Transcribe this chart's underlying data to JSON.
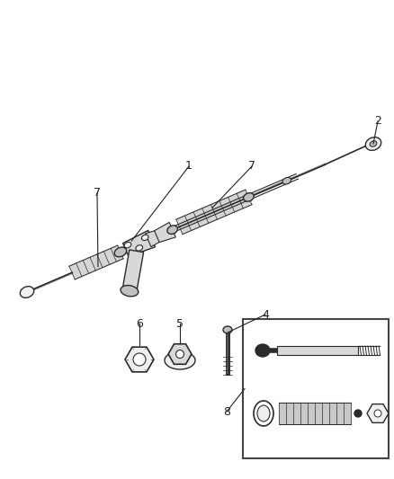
{
  "background_color": "#ffffff",
  "line_dark": "#2a2a2a",
  "line_mid": "#555555",
  "line_light": "#999999",
  "fill_gray": "#d8d8d8",
  "fill_light": "#efefef",
  "fill_mid": "#c0c0c0",
  "fig_width": 4.38,
  "fig_height": 5.33,
  "dpi": 100
}
